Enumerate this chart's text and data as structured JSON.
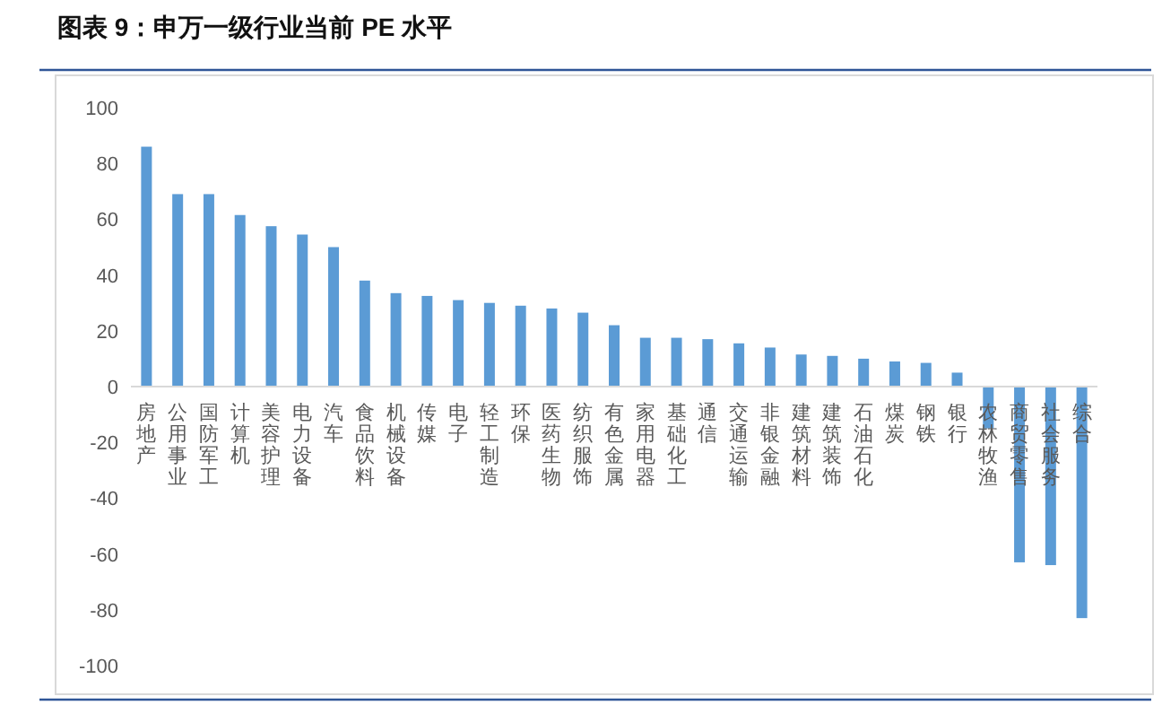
{
  "chart_data": {
    "type": "bar",
    "title": "图表 9：申万一级行业当前 PE 水平",
    "categories": [
      "房地产",
      "公用事业",
      "国防军工",
      "计算机",
      "美容护理",
      "电力设备",
      "汽车",
      "食品饮料",
      "机械设备",
      "传媒",
      "电子",
      "轻工制造",
      "环保",
      "医药生物",
      "纺织服饰",
      "有色金属",
      "家用电器",
      "基础化工",
      "通信",
      "交通运输",
      "非银金融",
      "建筑材料",
      "建筑装饰",
      "石油石化",
      "煤炭",
      "钢铁",
      "银行",
      "农林牧渔",
      "商贸零售",
      "社会服务",
      "综合"
    ],
    "values": [
      86,
      69,
      69,
      61.5,
      57.5,
      54.5,
      50,
      38,
      33.5,
      32.5,
      31,
      30,
      29,
      28,
      26.5,
      22,
      17.5,
      17.5,
      17,
      15.5,
      14,
      11.5,
      11,
      10,
      9,
      8.5,
      5,
      -15,
      -63,
      -64,
      -83
    ],
    "color": "#5b9bd5",
    "ylim": [
      -100,
      100
    ],
    "yticks": [
      -100,
      -80,
      -60,
      -40,
      -20,
      0,
      20,
      40,
      60,
      80,
      100
    ],
    "grid": false
  }
}
